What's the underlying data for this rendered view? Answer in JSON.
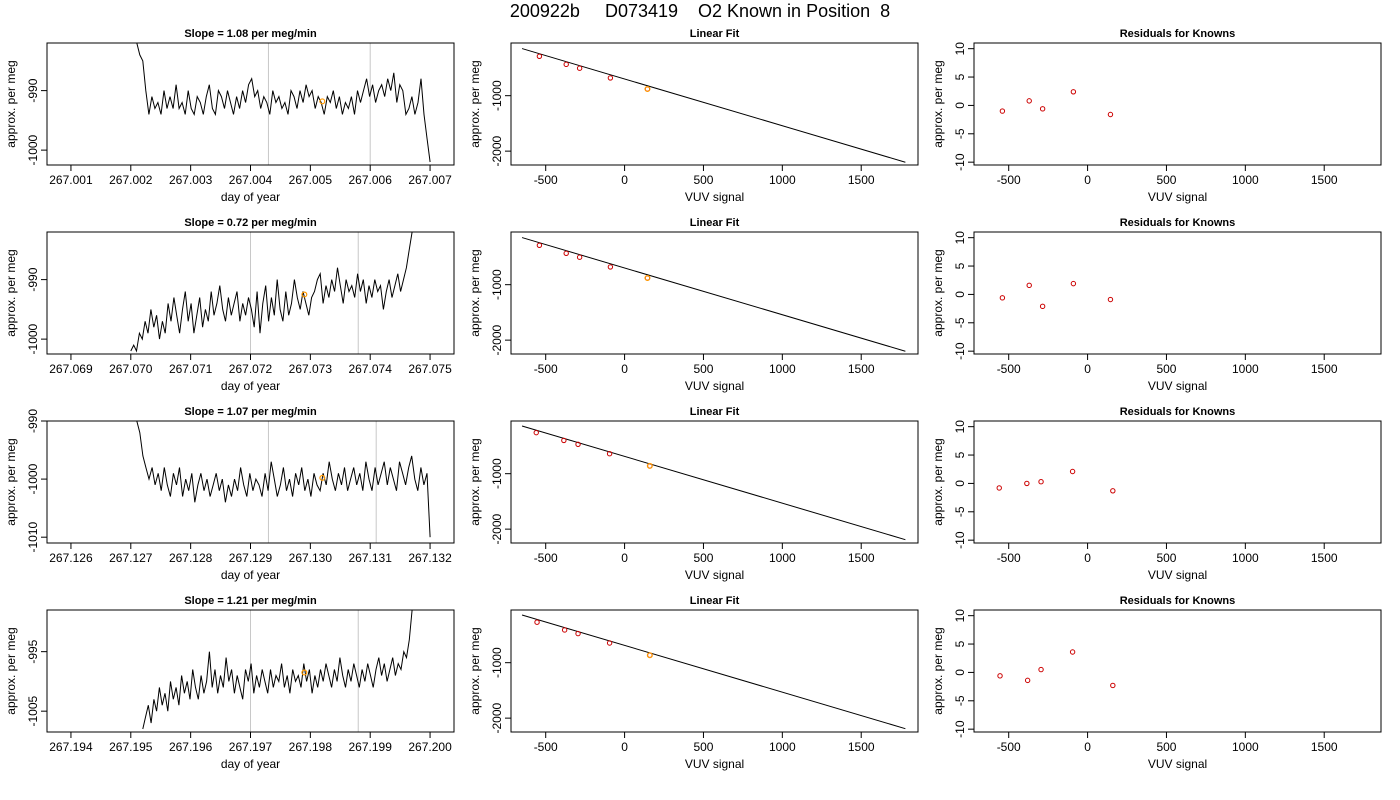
{
  "figure_title": "200922b     D073419    O2 Known in Position  8",
  "colors": {
    "line": "#000000",
    "gridline": "#c8c8c8",
    "point": "#cc0000",
    "highlight": "#ff9900"
  },
  "chart_data": [
    {
      "type": "line",
      "title": "Slope =  1.08  per meg/min",
      "xlabel": "day of year",
      "ylabel": "approx. per meg",
      "xlim": [
        267.0006,
        267.0074
      ],
      "ylim": [
        -1002.5,
        -982
      ],
      "xticks": [
        267.001,
        267.002,
        267.003,
        267.004,
        267.005,
        267.006,
        267.007
      ],
      "xticklabels": [
        "267.001",
        "267.002",
        "267.003",
        "267.004",
        "267.005",
        "267.006",
        "267.007"
      ],
      "yticks": [
        -990,
        -1000
      ],
      "yticklabels": [
        "-990",
        "-1000"
      ],
      "vlines": [
        267.0043,
        267.006
      ],
      "highlight": {
        "x": 267.0052,
        "y": -991.8
      },
      "series": [
        {
          "x0": 267.0021,
          "x1": 267.007,
          "y": [
            -982,
            -984,
            -985,
            -990,
            -994,
            -991,
            -993,
            -992,
            -994,
            -990,
            -993,
            -991,
            -993,
            -989,
            -993,
            -992,
            -994,
            -990,
            -993,
            -994,
            -991,
            -992,
            -994,
            -991,
            -989,
            -993,
            -994,
            -990,
            -991,
            -993,
            -990,
            -992,
            -994,
            -991,
            -993,
            -990,
            -992,
            -989,
            -988,
            -991,
            -990,
            -993,
            -991,
            -992,
            -994,
            -990,
            -992,
            -991,
            -993,
            -992,
            -994,
            -990,
            -991,
            -993,
            -990,
            -992,
            -989,
            -991,
            -990,
            -993,
            -991,
            -992,
            -994,
            -991,
            -992,
            -990,
            -993,
            -991,
            -994,
            -992,
            -993,
            -991,
            -994,
            -990,
            -992,
            -990,
            -988,
            -991,
            -989,
            -992,
            -990,
            -989,
            -991,
            -988,
            -990,
            -987,
            -992,
            -989,
            -990,
            -994,
            -993,
            -991,
            -994,
            -992,
            -988,
            -994,
            -998,
            -1002
          ]
        }
      ]
    },
    {
      "type": "scatter",
      "title": "Linear Fit",
      "xlabel": "VUV signal",
      "ylabel": "approx. per meg",
      "xlim": [
        -720,
        1860
      ],
      "ylim": [
        -2250,
        -50
      ],
      "xticks": [
        -500,
        0,
        500,
        1000,
        1500
      ],
      "xticklabels": [
        "-500",
        "0",
        "500",
        "1000",
        "1500"
      ],
      "yticks": [
        -1000,
        -2000
      ],
      "yticklabels": [
        "-1000",
        "-2000"
      ],
      "line": {
        "x": [
          -650,
          1780
        ],
        "y": [
          -150,
          -2200
        ]
      },
      "points": {
        "x": [
          -540,
          -370,
          -285,
          -90,
          145
        ],
        "y": [
          -290,
          -435,
          -505,
          -680,
          -880
        ]
      },
      "highlight": {
        "x": 145,
        "y": -880
      }
    },
    {
      "type": "scatter",
      "title": "Residuals for Knowns",
      "xlabel": "VUV signal",
      "ylabel": "approx. per meg",
      "xlim": [
        -720,
        1860
      ],
      "ylim": [
        -10.5,
        11
      ],
      "xticks": [
        -500,
        0,
        500,
        1000,
        1500
      ],
      "xticklabels": [
        "-500",
        "0",
        "500",
        "1000",
        "1500"
      ],
      "yticks": [
        10,
        5,
        0,
        -5,
        -10
      ],
      "yticklabels": [
        "10",
        "5",
        "0",
        "-5",
        "-10"
      ],
      "points": {
        "x": [
          -540,
          -370,
          -285,
          -90,
          145
        ],
        "y": [
          -1,
          0.8,
          -0.6,
          2.4,
          -1.6
        ]
      }
    },
    {
      "type": "line",
      "title": "Slope =  0.72  per meg/min",
      "xlabel": "day of year",
      "ylabel": "approx. per meg",
      "xlim": [
        267.0686,
        267.0754
      ],
      "ylim": [
        -1002.5,
        -982
      ],
      "xticks": [
        267.069,
        267.07,
        267.071,
        267.072,
        267.073,
        267.074,
        267.075
      ],
      "xticklabels": [
        "267.069",
        "267.070",
        "267.071",
        "267.072",
        "267.073",
        "267.074",
        "267.075"
      ],
      "yticks": [
        -990,
        -1000
      ],
      "yticklabels": [
        "-990",
        "-1000"
      ],
      "vlines": [
        267.072,
        267.0738
      ],
      "highlight": {
        "x": 267.0729,
        "y": -992.5
      },
      "series": [
        {
          "x0": 267.07,
          "x1": 267.0747,
          "y": [
            -1002,
            -1001,
            -1002,
            -999,
            -1000,
            -997,
            -999,
            -995,
            -998,
            -996,
            -1000,
            -997,
            -999,
            -994,
            -997,
            -993,
            -996,
            -999,
            -995,
            -992,
            -997,
            -994,
            -999,
            -996,
            -993,
            -998,
            -995,
            -997,
            -992,
            -996,
            -994,
            -991,
            -995,
            -997,
            -993,
            -996,
            -994,
            -992,
            -997,
            -994,
            -996,
            -993,
            -995,
            -998,
            -992,
            -999,
            -994,
            -991,
            -997,
            -993,
            -996,
            -990,
            -995,
            -997,
            -992,
            -996,
            -994,
            -990,
            -993,
            -995,
            -992,
            -994,
            -996,
            -993,
            -992,
            -990,
            -989,
            -994,
            -991,
            -993,
            -990,
            -992,
            -988,
            -991,
            -994,
            -990,
            -992,
            -991,
            -993,
            -989,
            -992,
            -990,
            -994,
            -991,
            -993,
            -990,
            -992,
            -991,
            -995,
            -992,
            -990,
            -993,
            -991,
            -989,
            -992,
            -990,
            -988,
            -985,
            -982
          ]
        }
      ]
    },
    {
      "type": "scatter",
      "title": "Linear Fit",
      "xlabel": "VUV signal",
      "ylabel": "approx. per meg",
      "xlim": [
        -720,
        1860
      ],
      "ylim": [
        -2250,
        -50
      ],
      "xticks": [
        -500,
        0,
        500,
        1000,
        1500
      ],
      "xticklabels": [
        "-500",
        "0",
        "500",
        "1000",
        "1500"
      ],
      "yticks": [
        -1000,
        -2000
      ],
      "yticklabels": [
        "-1000",
        "-2000"
      ],
      "line": {
        "x": [
          -650,
          1780
        ],
        "y": [
          -150,
          -2200
        ]
      },
      "points": {
        "x": [
          -540,
          -370,
          -285,
          -90,
          145
        ],
        "y": [
          -290,
          -435,
          -505,
          -680,
          -880
        ]
      },
      "highlight": {
        "x": 145,
        "y": -880
      }
    },
    {
      "type": "scatter",
      "title": "Residuals for Knowns",
      "xlabel": "VUV signal",
      "ylabel": "approx. per meg",
      "xlim": [
        -720,
        1860
      ],
      "ylim": [
        -10.5,
        11
      ],
      "xticks": [
        -500,
        0,
        500,
        1000,
        1500
      ],
      "xticklabels": [
        "-500",
        "0",
        "500",
        "1000",
        "1500"
      ],
      "yticks": [
        10,
        5,
        0,
        -5,
        -10
      ],
      "yticklabels": [
        "10",
        "5",
        "0",
        "-5",
        "-10"
      ],
      "points": {
        "x": [
          -540,
          -370,
          -285,
          -90,
          145
        ],
        "y": [
          -0.6,
          1.6,
          -2.1,
          1.9,
          -0.9
        ]
      }
    },
    {
      "type": "line",
      "title": "Slope =  1.07  per meg/min",
      "xlabel": "day of year",
      "ylabel": "approx. per meg",
      "xlim": [
        267.1256,
        267.1324
      ],
      "ylim": [
        -1011,
        -990
      ],
      "xticks": [
        267.126,
        267.127,
        267.128,
        267.129,
        267.13,
        267.131,
        267.132
      ],
      "xticklabels": [
        "267.126",
        "267.127",
        "267.128",
        "267.129",
        "267.130",
        "267.131",
        "267.132"
      ],
      "yticks": [
        -990,
        -1000,
        -1010
      ],
      "yticklabels": [
        "-990",
        "-1000",
        "-1010"
      ],
      "vlines": [
        267.1293,
        267.1311
      ],
      "highlight": {
        "x": 267.1302,
        "y": -999.8
      },
      "series": [
        {
          "x0": 267.1271,
          "x1": 267.132,
          "y": [
            -990,
            -992,
            -996,
            -998,
            -1000,
            -998,
            -1001,
            -999,
            -1002,
            -998,
            -1001,
            -1003,
            -999,
            -1001,
            -998,
            -1003,
            -1000,
            -1002,
            -999,
            -1004,
            -1001,
            -999,
            -1002,
            -1000,
            -1003,
            -1001,
            -999,
            -1002,
            -1000,
            -1004,
            -1001,
            -1003,
            -1000,
            -1002,
            -998,
            -1001,
            -1003,
            -999,
            -1002,
            -1000,
            -1001,
            -1003,
            -999,
            -1002,
            -997,
            -1000,
            -1003,
            -1001,
            -998,
            -1002,
            -1000,
            -1003,
            -999,
            -1001,
            -998,
            -1002,
            -1000,
            -1003,
            -999,
            -1001,
            -1002,
            -999,
            -1001,
            -997,
            -1000,
            -1002,
            -999,
            -1001,
            -998,
            -1002,
            -1000,
            -998,
            -1001,
            -999,
            -1002,
            -997,
            -1000,
            -1002,
            -998,
            -1001,
            -999,
            -997,
            -1001,
            -998,
            -1000,
            -1002,
            -997,
            -999,
            -1001,
            -998,
            -996,
            -1000,
            -1002,
            -998,
            -1001,
            -999,
            -1010
          ]
        }
      ]
    },
    {
      "type": "scatter",
      "title": "Linear Fit",
      "xlabel": "VUV signal",
      "ylabel": "approx. per meg",
      "xlim": [
        -720,
        1860
      ],
      "ylim": [
        -2250,
        -50
      ],
      "xticks": [
        -500,
        0,
        500,
        1000,
        1500
      ],
      "xticklabels": [
        "-500",
        "0",
        "500",
        "1000",
        "1500"
      ],
      "yticks": [
        -1000,
        -2000
      ],
      "yticklabels": [
        "-1000",
        "-2000"
      ],
      "line": {
        "x": [
          -650,
          1780
        ],
        "y": [
          -140,
          -2190
        ]
      },
      "points": {
        "x": [
          -560,
          -385,
          -295,
          -95,
          160
        ],
        "y": [
          -260,
          -400,
          -470,
          -640,
          -860
        ]
      },
      "highlight": {
        "x": 160,
        "y": -860
      }
    },
    {
      "type": "scatter",
      "title": "Residuals for Knowns",
      "xlabel": "VUV signal",
      "ylabel": "approx. per meg",
      "xlim": [
        -720,
        1860
      ],
      "ylim": [
        -10.5,
        11
      ],
      "xticks": [
        -500,
        0,
        500,
        1000,
        1500
      ],
      "xticklabels": [
        "-500",
        "0",
        "500",
        "1000",
        "1500"
      ],
      "yticks": [
        10,
        5,
        0,
        -5,
        -10
      ],
      "yticklabels": [
        "10",
        "5",
        "0",
        "-5",
        "-10"
      ],
      "points": {
        "x": [
          -560,
          -385,
          -295,
          -95,
          160
        ],
        "y": [
          -0.8,
          0,
          0.3,
          2.1,
          -1.3
        ]
      }
    },
    {
      "type": "line",
      "title": "Slope =  1.21  per meg/min",
      "xlabel": "day of year",
      "ylabel": "approx. per meg",
      "xlim": [
        267.1936,
        267.2004
      ],
      "ylim": [
        -1008.5,
        -988
      ],
      "xticks": [
        267.194,
        267.195,
        267.196,
        267.197,
        267.198,
        267.199,
        267.2
      ],
      "xticklabels": [
        "267.194",
        "267.195",
        "267.196",
        "267.197",
        "267.198",
        "267.199",
        "267.200"
      ],
      "yticks": [
        -995,
        -1005
      ],
      "yticklabels": [
        "-995",
        "-1005"
      ],
      "vlines": [
        267.197,
        267.1988
      ],
      "highlight": {
        "x": 267.1979,
        "y": -998.5
      },
      "series": [
        {
          "x0": 267.1952,
          "x1": 267.1997,
          "y": [
            -1008,
            -1006,
            -1004,
            -1007,
            -1003,
            -1005,
            -1001,
            -1004,
            -1002,
            -1005,
            -1000,
            -1003,
            -1001,
            -1004,
            -999,
            -1002,
            -1000,
            -1003,
            -998,
            -1001,
            -1003,
            -999,
            -1002,
            -1000,
            -995,
            -1001,
            -998,
            -1002,
            -999,
            -1001,
            -996,
            -1000,
            -998,
            -1002,
            -999,
            -1001,
            -1003,
            -998,
            -1000,
            -997,
            -1002,
            -999,
            -1001,
            -998,
            -1000,
            -1002,
            -998,
            -1001,
            -999,
            -1000,
            -997,
            -1001,
            -999,
            -1002,
            -998,
            -1000,
            -999,
            -1001,
            -997,
            -1000,
            -998,
            -1002,
            -999,
            -1001,
            -998,
            -1000,
            -997,
            -999,
            -1001,
            -998,
            -1000,
            -996,
            -999,
            -1001,
            -998,
            -1000,
            -997,
            -999,
            -1001,
            -998,
            -1000,
            -997,
            -999,
            -1001,
            -998,
            -996,
            -999,
            -997,
            -1000,
            -998,
            -996,
            -999,
            -997,
            -998,
            -995,
            -996,
            -993,
            -988
          ]
        }
      ]
    },
    {
      "type": "scatter",
      "title": "Linear Fit",
      "xlabel": "VUV signal",
      "ylabel": "approx. per meg",
      "xlim": [
        -720,
        1860
      ],
      "ylim": [
        -2250,
        -50
      ],
      "xticks": [
        -500,
        0,
        500,
        1000,
        1500
      ],
      "xticklabels": [
        "-500",
        "0",
        "500",
        "1000",
        "1500"
      ],
      "yticks": [
        -1000,
        -2000
      ],
      "yticklabels": [
        "-1000",
        "-2000"
      ],
      "line": {
        "x": [
          -650,
          1780
        ],
        "y": [
          -140,
          -2190
        ]
      },
      "points": {
        "x": [
          -555,
          -380,
          -295,
          -95,
          160
        ],
        "y": [
          -270,
          -410,
          -475,
          -645,
          -865
        ]
      },
      "highlight": {
        "x": 160,
        "y": -865
      }
    },
    {
      "type": "scatter",
      "title": "Residuals for Knowns",
      "xlabel": "VUV signal",
      "ylabel": "approx. per meg",
      "xlim": [
        -720,
        1860
      ],
      "ylim": [
        -10.5,
        11
      ],
      "xticks": [
        -500,
        0,
        500,
        1000,
        1500
      ],
      "xticklabels": [
        "-500",
        "0",
        "500",
        "1000",
        "1500"
      ],
      "yticks": [
        10,
        5,
        0,
        -5,
        -10
      ],
      "yticklabels": [
        "10",
        "5",
        "0",
        "-5",
        "-10"
      ],
      "points": {
        "x": [
          -555,
          -380,
          -295,
          -95,
          160
        ],
        "y": [
          -0.6,
          -1.4,
          0.5,
          3.6,
          -2.3
        ]
      }
    }
  ]
}
